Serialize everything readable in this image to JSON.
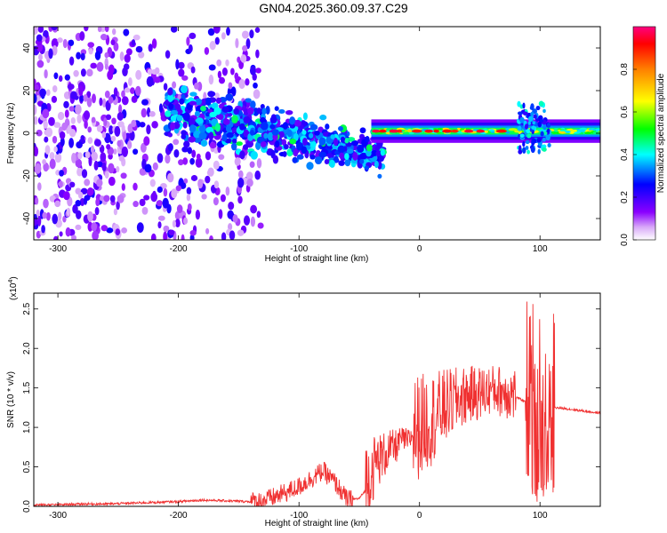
{
  "title": "GN04.2025.360.09.37.C29",
  "chart_data": [
    {
      "type": "heatmap",
      "name": "spectrogram",
      "xlabel": "Height of straight line (km)",
      "ylabel": "Frequency (Hz)",
      "xlim": [
        -320,
        150
      ],
      "ylim": [
        -50,
        50
      ],
      "xticks": [
        -300,
        -200,
        -100,
        0,
        100
      ],
      "yticks": [
        -40,
        -20,
        0,
        20,
        40
      ],
      "colorbar": {
        "label": "Normalized spectral amplitude",
        "range": [
          0,
          1
        ],
        "ticks": [
          0.0,
          0.2,
          0.4,
          0.6,
          0.8
        ],
        "tick_labels": [
          "0.0",
          "0.2",
          "0.4",
          "0.6",
          "0.8"
        ]
      },
      "features": [
        {
          "region": "noise",
          "x_range": [
            -320,
            -130
          ],
          "frequency_range": [
            -50,
            50
          ],
          "amplitude": [
            0.05,
            0.25
          ]
        },
        {
          "region": "chirp",
          "x_range": [
            -210,
            -30
          ],
          "frequency_center_start": 10,
          "frequency_center_end": -10,
          "amplitude": [
            0.15,
            0.4
          ]
        },
        {
          "region": "carrier",
          "x_range": [
            -40,
            150
          ],
          "frequency_center": 1,
          "amplitude": [
            0.35,
            0.95
          ]
        },
        {
          "region": "disturbance",
          "x_range": [
            82,
            108
          ],
          "frequency_range": [
            -10,
            14
          ],
          "amplitude": [
            0.2,
            0.45
          ]
        }
      ]
    },
    {
      "type": "line",
      "name": "snr",
      "xlabel": "Height of straight line (km)",
      "ylabel": "SNR (10 * v/v)",
      "scale_label": "(x10",
      "scale_exponent": "4",
      "scale_suffix": ")",
      "xlim": [
        -320,
        150
      ],
      "ylim": [
        0,
        2.7
      ],
      "xticks": [
        -300,
        -200,
        -100,
        0,
        100
      ],
      "yticks": [
        0.0,
        0.5,
        1.0,
        1.5,
        2.0,
        2.5
      ],
      "ytick_labels": [
        "0.0",
        "0.5",
        "1.0",
        "1.5",
        "2.0",
        "2.5"
      ],
      "series": [
        {
          "name": "SNR",
          "color": "#f03030",
          "x": [
            -320,
            -300,
            -280,
            -260,
            -240,
            -220,
            -200,
            -180,
            -160,
            -140,
            -130,
            -120,
            -110,
            -100,
            -90,
            -80,
            -70,
            -60,
            -50,
            -45,
            -40,
            -35,
            -30,
            -25,
            -20,
            -15,
            -10,
            -5,
            0,
            10,
            20,
            30,
            40,
            50,
            60,
            70,
            80,
            85,
            90,
            93,
            96,
            99,
            102,
            105,
            108,
            112,
            120,
            130,
            140,
            150
          ],
          "y": [
            0.02,
            0.02,
            0.03,
            0.03,
            0.04,
            0.05,
            0.06,
            0.08,
            0.07,
            0.06,
            0.07,
            0.12,
            0.18,
            0.25,
            0.35,
            0.45,
            0.3,
            0.08,
            0.1,
            0.2,
            0.4,
            0.55,
            0.6,
            0.7,
            0.72,
            0.85,
            0.8,
            0.9,
            0.95,
            1.05,
            1.2,
            1.3,
            1.38,
            1.4,
            1.45,
            1.42,
            1.38,
            1.35,
            1.3,
            1.7,
            1.4,
            1.6,
            1.2,
            1.45,
            1.3,
            1.25,
            1.24,
            1.22,
            1.2,
            1.18
          ]
        }
      ],
      "spikes": [
        {
          "x_range": [
            -45,
            -5
          ],
          "max": 1.05
        },
        {
          "x_range": [
            -5,
            80
          ],
          "max": 1.9
        },
        {
          "x_range": [
            88,
            112
          ],
          "max": 2.65
        }
      ]
    }
  ]
}
